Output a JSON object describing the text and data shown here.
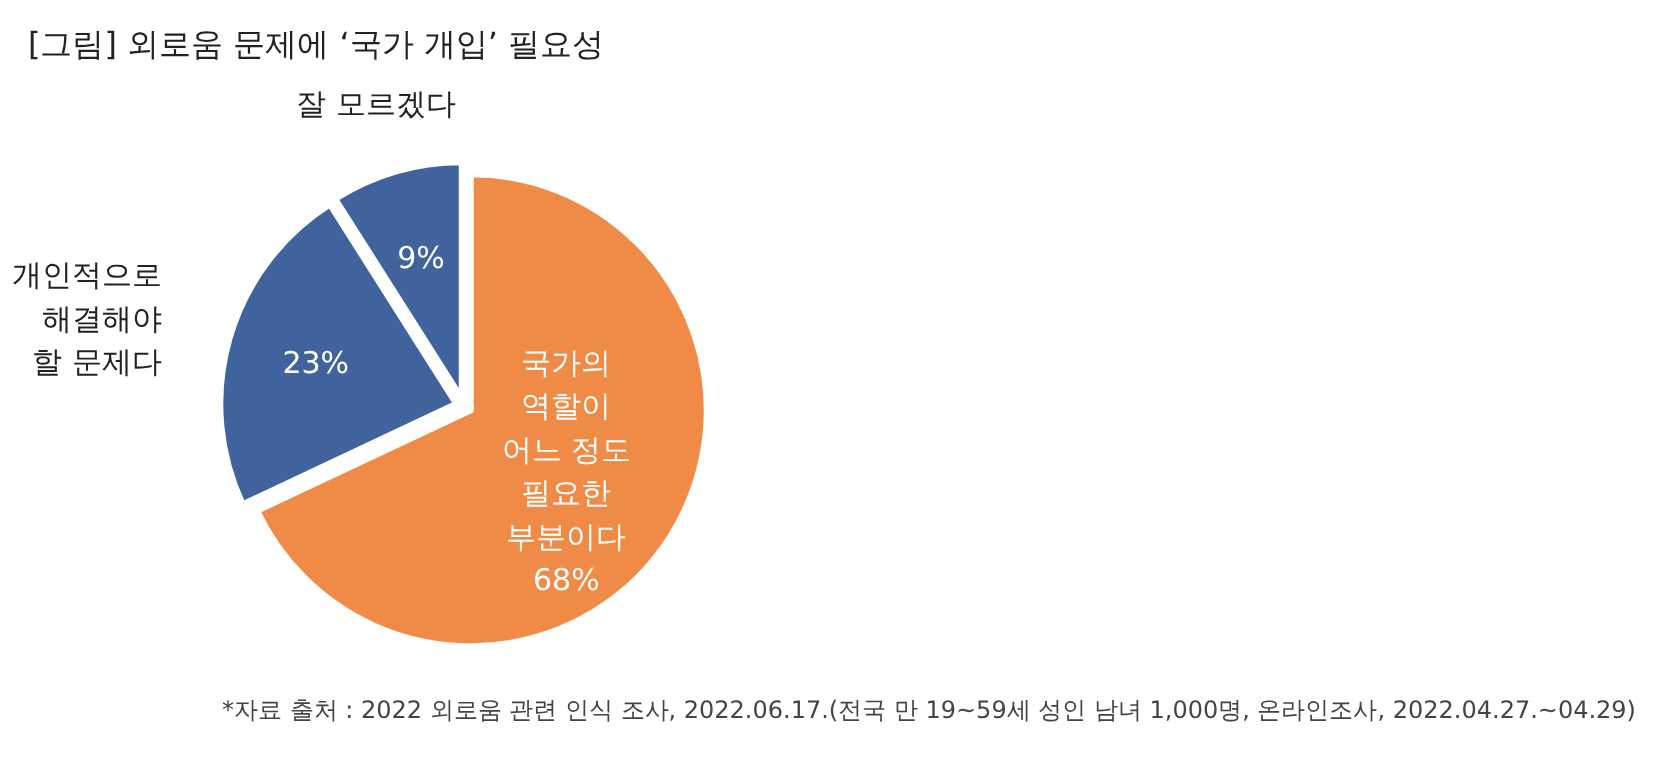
{
  "chart_data": {
    "type": "pie",
    "title": "[그림] 외로움 문제에 ‘국가 개입’ 필요성",
    "categories": [
      "국가의\n역할이\n어느 정도\n필요한\n부분이다",
      "개인적으로\n해결해야\n할 문제다",
      "잘 모르겠다"
    ],
    "values": [
      68,
      23,
      9
    ],
    "colors": [
      "#ef8a47",
      "#41639d",
      "#41639d"
    ],
    "value_labels": [
      "68%",
      "23%",
      "9%"
    ],
    "annotations": [
      "*자료 출처 : 2022 외로움 관련 인식 조사, 2022.06.17.(전국 만 19~59세  성인 남녀 1,000명, 온라인조사, 2022.04.27.~04.29)"
    ]
  }
}
